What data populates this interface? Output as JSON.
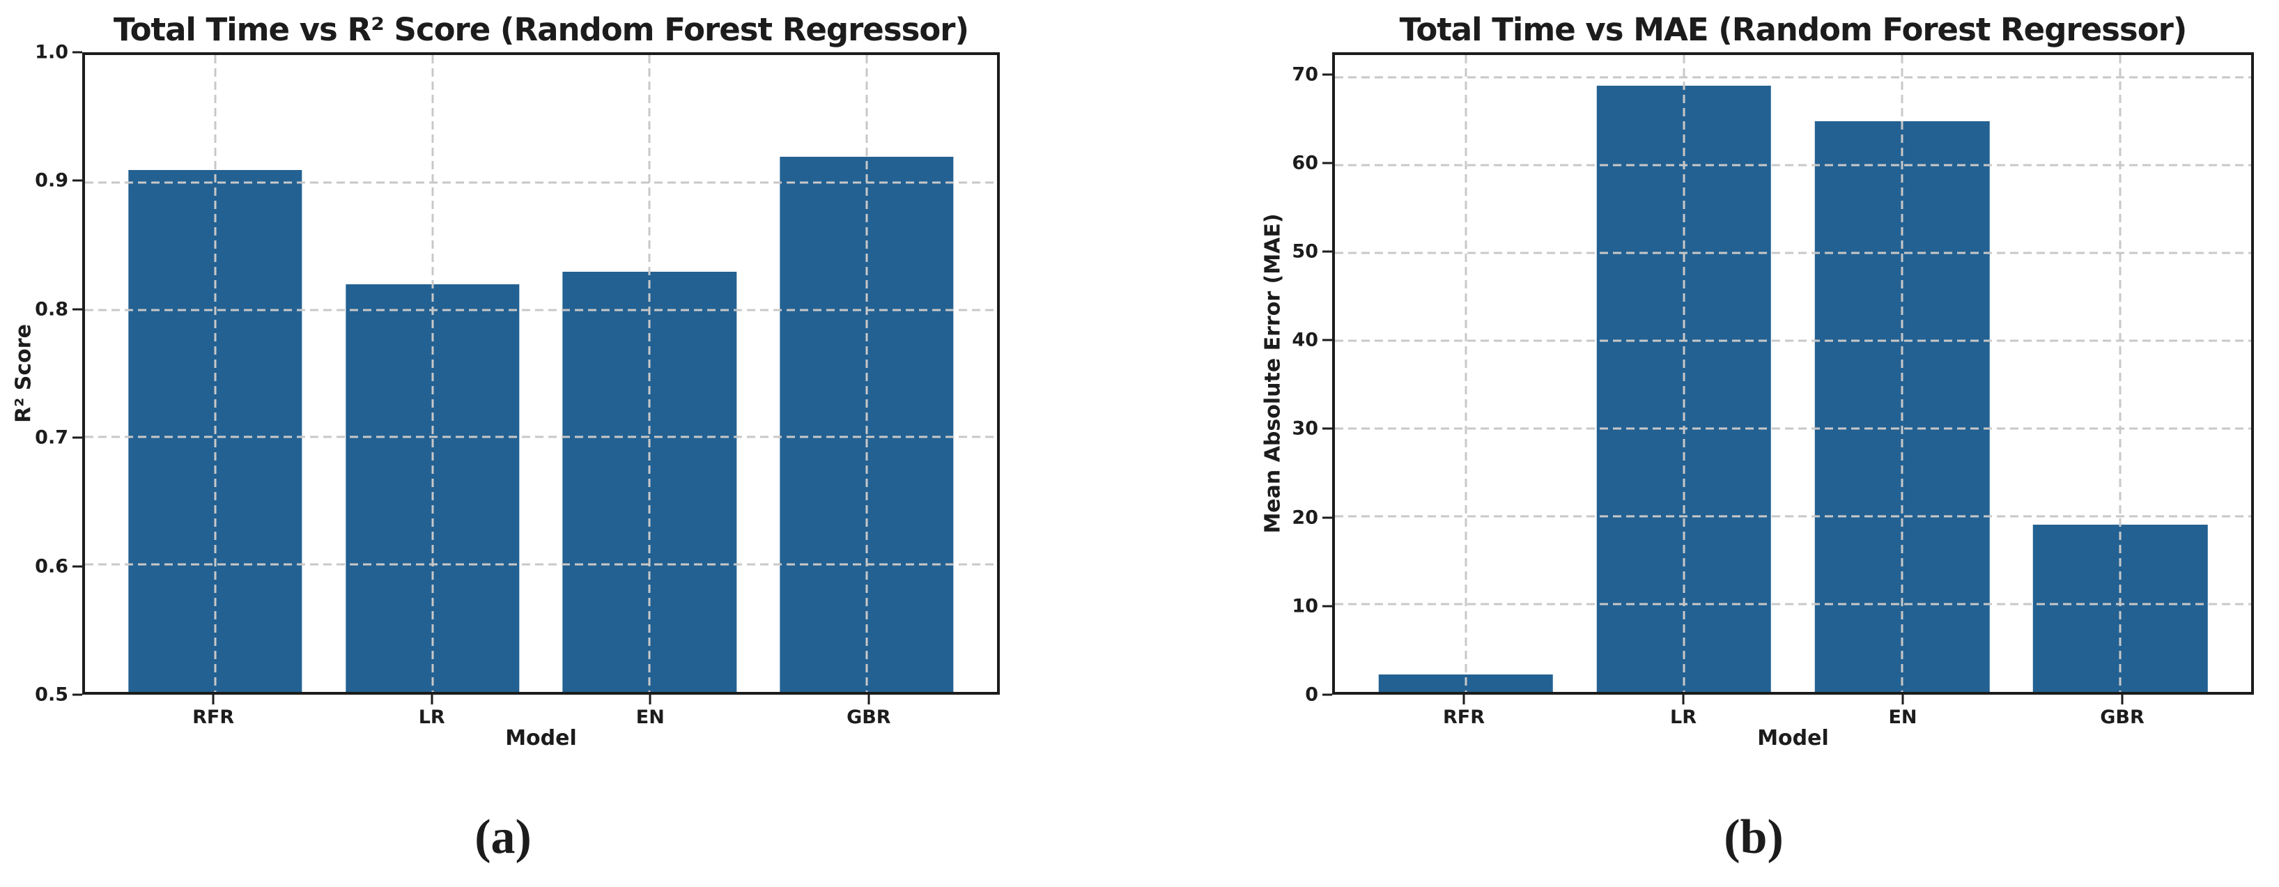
{
  "styles": {
    "background": "#ffffff",
    "bar_color": "#236192",
    "grid_color": "#c8c8c8",
    "ink_color": "#1c1c1c"
  },
  "captions": [
    "(a)",
    "(b)"
  ],
  "chart_data": [
    {
      "type": "bar",
      "title": "Total Time vs R² Score (Random Forest Regressor)",
      "xlabel": "Model",
      "ylabel": "R² Score",
      "categories": [
        "RFR",
        "LR",
        "EN",
        "GBR"
      ],
      "values": [
        0.91,
        0.82,
        0.83,
        0.92
      ],
      "ylim": [
        0.5,
        1.0
      ],
      "yticks": [
        0.5,
        0.6,
        0.7,
        0.8,
        0.9,
        1.0
      ],
      "ytick_labels": [
        "0.5",
        "0.6",
        "0.7",
        "0.8",
        "0.9",
        "1.0"
      ],
      "grid": true,
      "grid_style": "dashed",
      "legend": "none"
    },
    {
      "type": "bar",
      "title": "Total Time vs MAE (Random Forest Regressor)",
      "xlabel": "Model",
      "ylabel": "Mean Absolute Error (MAE)",
      "categories": [
        "RFR",
        "LR",
        "EN",
        "GBR"
      ],
      "values": [
        2,
        69,
        65,
        19
      ],
      "ylim": [
        0,
        72.5
      ],
      "yticks": [
        0,
        10,
        20,
        30,
        40,
        50,
        60,
        70
      ],
      "ytick_labels": [
        "0",
        "10",
        "20",
        "30",
        "40",
        "50",
        "60",
        "70"
      ],
      "grid": true,
      "grid_style": "dashed",
      "legend": "none"
    }
  ]
}
